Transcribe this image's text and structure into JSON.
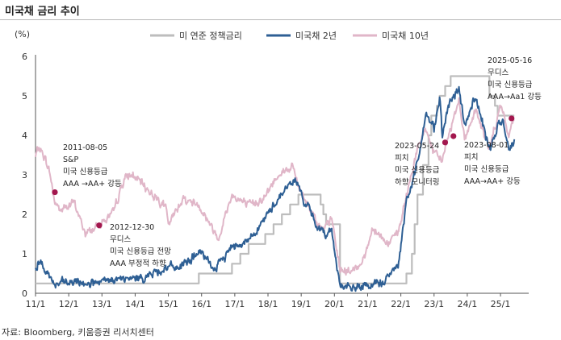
{
  "title": "미국채 금리 추이",
  "source": "자료: Bloomberg, 키움증권 리서치센터",
  "colors": {
    "policy": "#bdbdbd",
    "t2": "#2e5f94",
    "t10": "#e0b6c8",
    "marker": "#a3174e"
  },
  "chart_data": {
    "type": "line",
    "ylabel": "(%)",
    "ylim": [
      0,
      6
    ],
    "yticks": [
      0,
      1,
      2,
      3,
      4,
      5,
      6
    ],
    "x_tick_labels": [
      "11/1",
      "12/1",
      "13/1",
      "14/1",
      "15/1",
      "16/1",
      "17/1",
      "18/1",
      "19/1",
      "20/1",
      "21/1",
      "22/1",
      "23/1",
      "24/1",
      "25/1"
    ],
    "legend_position": "top",
    "grid": false,
    "series": [
      {
        "name": "미 연준 정책금리",
        "style": "step",
        "points": [
          [
            "2011-01",
            0.25
          ],
          [
            "2015-12",
            0.5
          ],
          [
            "2016-12",
            0.75
          ],
          [
            "2017-03",
            1.0
          ],
          [
            "2017-06",
            1.25
          ],
          [
            "2017-12",
            1.5
          ],
          [
            "2018-03",
            1.75
          ],
          [
            "2018-06",
            2.0
          ],
          [
            "2018-09",
            2.25
          ],
          [
            "2018-12",
            2.5
          ],
          [
            "2019-08",
            2.25
          ],
          [
            "2019-09",
            2.0
          ],
          [
            "2019-10",
            1.75
          ],
          [
            "2020-03",
            0.25
          ],
          [
            "2022-03",
            0.5
          ],
          [
            "2022-05",
            1.0
          ],
          [
            "2022-06",
            1.75
          ],
          [
            "2022-07",
            2.5
          ],
          [
            "2022-09",
            3.25
          ],
          [
            "2022-11",
            4.0
          ],
          [
            "2022-12",
            4.5
          ],
          [
            "2023-02",
            4.75
          ],
          [
            "2023-03",
            5.0
          ],
          [
            "2023-05",
            5.25
          ],
          [
            "2023-07",
            5.5
          ],
          [
            "2024-09",
            5.0
          ],
          [
            "2024-11",
            4.75
          ],
          [
            "2024-12",
            4.5
          ],
          [
            "2025-06",
            4.5
          ]
        ]
      },
      {
        "name": "미국채 2년",
        "points": [
          [
            "2011-01",
            0.6
          ],
          [
            "2011-02",
            0.8
          ],
          [
            "2011-04",
            0.7
          ],
          [
            "2011-06",
            0.45
          ],
          [
            "2011-08",
            0.2
          ],
          [
            "2011-10",
            0.25
          ],
          [
            "2012-06",
            0.27
          ],
          [
            "2012-12",
            0.25
          ],
          [
            "2013-06",
            0.35
          ],
          [
            "2013-12",
            0.35
          ],
          [
            "2014-06",
            0.45
          ],
          [
            "2014-12",
            0.65
          ],
          [
            "2015-06",
            0.68
          ],
          [
            "2015-12",
            1.05
          ],
          [
            "2016-06",
            0.6
          ],
          [
            "2016-12",
            1.2
          ],
          [
            "2017-06",
            1.35
          ],
          [
            "2017-12",
            1.9
          ],
          [
            "2018-06",
            2.55
          ],
          [
            "2018-11",
            2.9
          ],
          [
            "2019-01",
            2.5
          ],
          [
            "2019-06",
            1.8
          ],
          [
            "2019-09",
            1.5
          ],
          [
            "2019-12",
            1.6
          ],
          [
            "2020-03",
            0.2
          ],
          [
            "2020-08",
            0.13
          ],
          [
            "2021-06",
            0.25
          ],
          [
            "2021-12",
            0.7
          ],
          [
            "2022-03",
            2.3
          ],
          [
            "2022-06",
            3.0
          ],
          [
            "2022-10",
            4.5
          ],
          [
            "2023-01",
            4.2
          ],
          [
            "2023-03",
            5.0
          ],
          [
            "2023-04",
            4.0
          ],
          [
            "2023-07",
            4.9
          ],
          [
            "2023-10",
            5.15
          ],
          [
            "2023-12",
            4.25
          ],
          [
            "2024-04",
            5.0
          ],
          [
            "2024-09",
            3.6
          ],
          [
            "2024-12",
            4.25
          ],
          [
            "2025-02",
            4.3
          ],
          [
            "2025-04",
            3.7
          ],
          [
            "2025-06",
            3.9
          ]
        ]
      },
      {
        "name": "미국채 10년",
        "points": [
          [
            "2011-01",
            3.45
          ],
          [
            "2011-02",
            3.7
          ],
          [
            "2011-04",
            3.5
          ],
          [
            "2011-06",
            3.1
          ],
          [
            "2011-08",
            2.3
          ],
          [
            "2011-10",
            2.1
          ],
          [
            "2012-03",
            2.3
          ],
          [
            "2012-07",
            1.5
          ],
          [
            "2012-12",
            1.75
          ],
          [
            "2013-05",
            2.0
          ],
          [
            "2013-09",
            2.9
          ],
          [
            "2013-12",
            3.0
          ],
          [
            "2014-06",
            2.6
          ],
          [
            "2014-12",
            2.2
          ],
          [
            "2015-01",
            1.7
          ],
          [
            "2015-06",
            2.4
          ],
          [
            "2015-12",
            2.25
          ],
          [
            "2016-07",
            1.4
          ],
          [
            "2016-12",
            2.5
          ],
          [
            "2017-06",
            2.2
          ],
          [
            "2017-12",
            2.45
          ],
          [
            "2018-05",
            3.05
          ],
          [
            "2018-10",
            3.2
          ],
          [
            "2018-12",
            2.7
          ],
          [
            "2019-09",
            1.55
          ],
          [
            "2019-12",
            1.9
          ],
          [
            "2020-03",
            0.6
          ],
          [
            "2020-08",
            0.55
          ],
          [
            "2020-12",
            0.95
          ],
          [
            "2021-03",
            1.7
          ],
          [
            "2021-08",
            1.25
          ],
          [
            "2021-12",
            1.5
          ],
          [
            "2022-06",
            3.4
          ],
          [
            "2022-10",
            4.2
          ],
          [
            "2023-01",
            3.5
          ],
          [
            "2023-04",
            3.4
          ],
          [
            "2023-10",
            4.95
          ],
          [
            "2023-12",
            3.9
          ],
          [
            "2024-04",
            4.65
          ],
          [
            "2024-09",
            3.65
          ],
          [
            "2025-01",
            4.75
          ],
          [
            "2025-04",
            4.0
          ],
          [
            "2025-06",
            4.4
          ]
        ]
      }
    ],
    "annotations": [
      {
        "date": "2011-08",
        "value": 2.56,
        "lines": [
          "2011-08-05",
          "S&P",
          "미국 신용등급",
          "AAA →AA+ 강등"
        ]
      },
      {
        "date": "2012-12",
        "value": 1.72,
        "lines": [
          "2012-12-30",
          "무디스",
          "미국 신용등급 전망",
          "AAA 부정적 하향"
        ]
      },
      {
        "date": "2023-05",
        "value": 3.82,
        "lines": [
          "2023-05-24",
          "피치",
          "미국 신용등급",
          "하향 모니터링"
        ]
      },
      {
        "date": "2023-08",
        "value": 3.98,
        "lines": [
          "2023-08-01",
          "피치",
          "미국 신용등급",
          "AAA→AA+ 강등"
        ]
      },
      {
        "date": "2025-05",
        "value": 4.43,
        "lines": [
          "2025-05-16",
          "무디스",
          "미국 신용등급",
          "AAA→Aa1 강등"
        ]
      }
    ]
  }
}
